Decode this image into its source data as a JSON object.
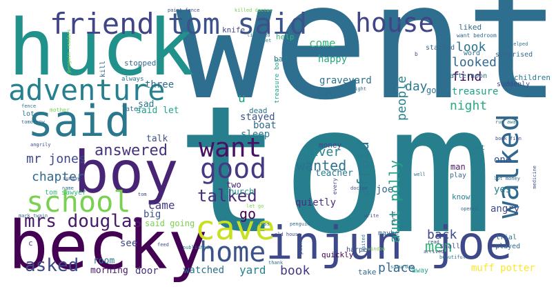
{
  "words": [
    {
      "text": "went",
      "color": "#2e6e8e"
    },
    {
      "text": "tom",
      "color": "#277f8e"
    },
    {
      "text": "huck",
      "color": "#21918c"
    },
    {
      "text": "becky",
      "color": "#440154"
    },
    {
      "text": "boy",
      "color": "#482475"
    },
    {
      "text": "said",
      "color": "#2a788e"
    },
    {
      "text": "injun joe",
      "color": "#3e4989"
    },
    {
      "text": "friend",
      "color": "#414487"
    },
    {
      "text": "tom said",
      "color": "#3b528b"
    },
    {
      "text": "adventure",
      "color": "#27808e"
    },
    {
      "text": "school",
      "color": "#7ad151"
    },
    {
      "text": "cave",
      "color": "#c8e020"
    },
    {
      "text": "home",
      "color": "#3b528b"
    },
    {
      "text": "good",
      "color": "#443983"
    },
    {
      "text": "want",
      "color": "#471063"
    },
    {
      "text": "walked",
      "color": "#31688e"
    },
    {
      "text": "house",
      "color": "#414487"
    },
    {
      "text": "mrs douglas",
      "color": "#48186a"
    },
    {
      "text": "talked",
      "color": "#472d7b"
    },
    {
      "text": "asked",
      "color": "#3e4989"
    },
    {
      "text": "answered",
      "color": "#46327e"
    },
    {
      "text": "wanted",
      "color": "#2c728e"
    },
    {
      "text": "aunt polly",
      "color": "#1fa187"
    },
    {
      "text": "afraid",
      "color": "#2a788e"
    },
    {
      "text": "mr jones",
      "color": "#3e4989"
    },
    {
      "text": "chapter",
      "color": "#31688e"
    },
    {
      "text": "people",
      "color": "#26828e"
    },
    {
      "text": "river",
      "color": "#25848e"
    },
    {
      "text": "night",
      "color": "#25ab82"
    },
    {
      "text": "looked",
      "color": "#31688e"
    },
    {
      "text": "find",
      "color": "#440154"
    },
    {
      "text": "treasure",
      "color": "#1fa187"
    },
    {
      "text": "graveyard",
      "color": "#2c728e"
    },
    {
      "text": "day",
      "color": "#2a788e"
    },
    {
      "text": "look",
      "color": "#2c728e"
    },
    {
      "text": "come",
      "color": "#35b779"
    },
    {
      "text": "back",
      "color": "#3e4989"
    },
    {
      "text": "men",
      "color": "#35b779"
    },
    {
      "text": "place",
      "color": "#31688e"
    },
    {
      "text": "book",
      "color": "#453781"
    },
    {
      "text": "muff potter",
      "color": "#fde725"
    },
    {
      "text": "yard",
      "color": "#26828e"
    },
    {
      "text": "watched",
      "color": "#2c728e"
    },
    {
      "text": "door",
      "color": "#46327e"
    },
    {
      "text": "morning",
      "color": "#48186a"
    },
    {
      "text": "room",
      "color": "#2a788e"
    },
    {
      "text": "came",
      "color": "#443983"
    },
    {
      "text": "go",
      "color": "#440154"
    },
    {
      "text": "three",
      "color": "#31688e"
    },
    {
      "text": "sad",
      "color": "#2a788e"
    },
    {
      "text": "said let",
      "color": "#20a386"
    },
    {
      "text": "talk",
      "color": "#3b528b"
    },
    {
      "text": "stayed",
      "color": "#3b528b"
    },
    {
      "text": "boat",
      "color": "#31688e"
    },
    {
      "text": "sleep",
      "color": "#2a788e"
    },
    {
      "text": "new",
      "color": "#26828e"
    },
    {
      "text": "money",
      "color": "#3e4989"
    },
    {
      "text": "quietly",
      "color": "#472d7b"
    },
    {
      "text": "teacher",
      "color": "#2a788e"
    },
    {
      "text": "two",
      "color": "#482475"
    },
    {
      "text": "church",
      "color": "#1f988b"
    },
    {
      "text": "u",
      "color": "#1fa187"
    },
    {
      "text": "happy",
      "color": "#22a884"
    },
    {
      "text": "going",
      "color": "#2c728e"
    },
    {
      "text": "one",
      "color": "#3b528b"
    },
    {
      "text": "yes",
      "color": "#27808e"
    },
    {
      "text": "angry",
      "color": "#3e4989"
    },
    {
      "text": "joe",
      "color": "#31688e"
    },
    {
      "text": "man",
      "color": "#48186a"
    },
    {
      "text": "children",
      "color": "#2a788e"
    },
    {
      "text": "tom sawyer",
      "color": "#35b779"
    },
    {
      "text": "see",
      "color": "#3e4989"
    },
    {
      "text": "big",
      "color": "#3b528b"
    },
    {
      "text": "said going",
      "color": "#7ad151"
    },
    {
      "text": "started",
      "color": "#31688e"
    },
    {
      "text": "surprised",
      "color": "#31688e"
    },
    {
      "text": "suddenly",
      "color": "#3e4989"
    },
    {
      "text": "afternoon",
      "color": "#2c728e"
    },
    {
      "text": "stopped",
      "color": "#31688e"
    },
    {
      "text": "bad",
      "color": "#2a788e"
    },
    {
      "text": "help",
      "color": "#35b779"
    },
    {
      "text": "knife",
      "color": "#3e4989"
    },
    {
      "text": "dead",
      "color": "#2c728e"
    },
    {
      "text": "later",
      "color": "#2c728e"
    },
    {
      "text": "lot",
      "color": "#2a788e"
    },
    {
      "text": "kill",
      "color": "#31688e"
    },
    {
      "text": "always",
      "color": "#2a788e"
    },
    {
      "text": "liked",
      "color": "#31688e"
    },
    {
      "text": "word",
      "color": "#2c728e"
    },
    {
      "text": "quickly",
      "color": "#440154"
    },
    {
      "text": "take",
      "color": "#31688e"
    },
    {
      "text": "maybe",
      "color": "#31688e"
    },
    {
      "text": "trial",
      "color": "#2c728e"
    },
    {
      "text": "played",
      "color": "#31688e"
    },
    {
      "text": "know",
      "color": "#26828e"
    },
    {
      "text": "play",
      "color": "#31688e"
    },
    {
      "text": "put",
      "color": "#2a788e"
    },
    {
      "text": "small",
      "color": "#3b528b"
    },
    {
      "text": "away",
      "color": "#20a386"
    },
    {
      "text": "treasure box",
      "color": "#1fa187"
    },
    {
      "text": "harper",
      "color": "#3b528b"
    },
    {
      "text": "want bedroom",
      "color": "#31688e"
    },
    {
      "text": "paint fence",
      "color": "#3e4989"
    },
    {
      "text": "listened",
      "color": "#2c728e"
    },
    {
      "text": "street",
      "color": "#2a788e"
    },
    {
      "text": "right",
      "color": "#2c728e"
    },
    {
      "text": "light",
      "color": "#31688e"
    },
    {
      "text": "helped",
      "color": "#2c728e"
    },
    {
      "text": "run away",
      "color": "#2a788e"
    },
    {
      "text": "lot money",
      "color": "#31688e"
    },
    {
      "text": "medicine",
      "color": "#3b528b"
    },
    {
      "text": "beautiful",
      "color": "#2c728e"
    },
    {
      "text": "read",
      "color": "#3e4989"
    },
    {
      "text": "feed",
      "color": "#3e4989"
    },
    {
      "text": "cross",
      "color": "#2c728e"
    },
    {
      "text": "penguin",
      "color": "#31688e"
    },
    {
      "text": "name",
      "color": "#2c728e"
    },
    {
      "text": "sunday",
      "color": "#3e4989"
    },
    {
      "text": "tomorrow",
      "color": "#31688e"
    },
    {
      "text": "mother",
      "color": "#7ad151"
    },
    {
      "text": "fence",
      "color": "#2c728e"
    },
    {
      "text": "let go",
      "color": "#7ad151"
    },
    {
      "text": "doctor",
      "color": "#3b528b"
    },
    {
      "text": "old house",
      "color": "#3e4989"
    },
    {
      "text": "published",
      "color": "#2a788e"
    },
    {
      "text": "thank",
      "color": "#2c728e"
    },
    {
      "text": "tom",
      "color": "#3e4989"
    },
    {
      "text": "saturday",
      "color": "#2c728e"
    },
    {
      "text": "killed doctor",
      "color": "#7ad151"
    },
    {
      "text": "penguin readers",
      "color": "#7ad151"
    },
    {
      "text": "write",
      "color": "#3b528b"
    },
    {
      "text": "idea",
      "color": "#2c728e"
    },
    {
      "text": "book finn",
      "color": "#3e4989"
    },
    {
      "text": "well",
      "color": "#2c728e"
    },
    {
      "text": "arrived",
      "color": "#3e4989"
    },
    {
      "text": "opened",
      "color": "#31688e"
    },
    {
      "text": "every",
      "color": "#3e4989"
    },
    {
      "text": "first",
      "color": "#3b528b"
    },
    {
      "text": "waited",
      "color": "#2c728e"
    },
    {
      "text": "paint",
      "color": "#3b528b"
    },
    {
      "text": "town",
      "color": "#2a788e"
    },
    {
      "text": "window",
      "color": "#7ad151"
    },
    {
      "text": "angrily",
      "color": "#3e4989"
    },
    {
      "text": "mark twain",
      "color": "#31688e"
    },
    {
      "text": "c",
      "color": "#3e4989"
    },
    {
      "text": "b",
      "color": "#3b528b"
    }
  ]
}
